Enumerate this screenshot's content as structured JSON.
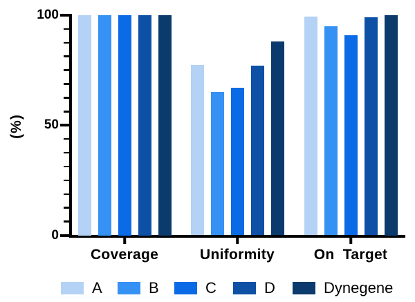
{
  "chart_data": {
    "type": "bar",
    "title": "",
    "xlabel": "",
    "ylabel": "(%)",
    "ylim": [
      0,
      100
    ],
    "yticks_major": [
      0,
      50,
      100
    ],
    "ytick_minor_step": 6.25,
    "grid": false,
    "legend_position": "bottom",
    "categories": [
      "Coverage",
      "Uniformity",
      "On  Target"
    ],
    "series": [
      {
        "name": "A",
        "color": "#b3d2f5",
        "values": [
          100,
          77.5,
          99.5
        ]
      },
      {
        "name": "B",
        "color": "#3591f4",
        "values": [
          100,
          65,
          95
        ]
      },
      {
        "name": "C",
        "color": "#0b6ae5",
        "values": [
          100,
          67,
          91
        ]
      },
      {
        "name": "D",
        "color": "#0d50a6",
        "values": [
          100,
          77,
          99.2
        ]
      },
      {
        "name": "Dynegene",
        "color": "#0b3a6c",
        "values": [
          100,
          88,
          100
        ]
      }
    ],
    "axis_color": "#000000",
    "background_color": "#ffffff"
  }
}
